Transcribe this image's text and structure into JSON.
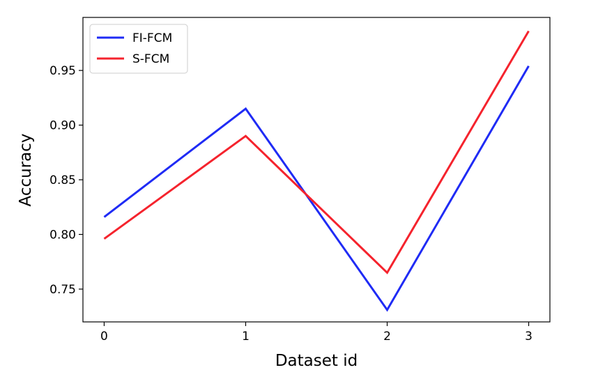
{
  "chart_data": {
    "type": "line",
    "x": [
      0,
      1,
      2,
      3
    ],
    "xticks": [
      "0",
      "1",
      "2",
      "3"
    ],
    "yticks": [
      "0.75",
      "0.80",
      "0.85",
      "0.90",
      "0.95"
    ],
    "yticks_values": [
      0.75,
      0.8,
      0.85,
      0.9,
      0.95
    ],
    "xlim": [
      -0.15,
      3.15
    ],
    "ylim": [
      0.72,
      0.9985
    ],
    "xlabel": "Dataset id",
    "ylabel": "Accuracy",
    "grid": false,
    "legend_position": "top-left",
    "series": [
      {
        "name": "FI-FCM",
        "color": "#1f2bf5",
        "values": [
          0.816,
          0.915,
          0.731,
          0.954
        ]
      },
      {
        "name": "S-FCM",
        "color": "#f5232d",
        "values": [
          0.796,
          0.89,
          0.765,
          0.986
        ]
      }
    ]
  }
}
